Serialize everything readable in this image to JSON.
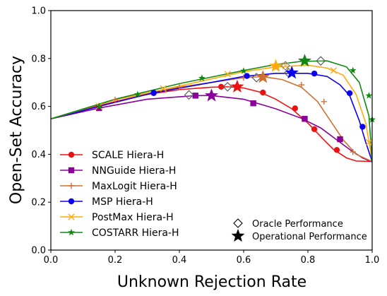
{
  "chart_data": {
    "type": "line",
    "xlabel": "Unknown Rejection Rate",
    "ylabel": "Open-Set Accuracy",
    "xlim": [
      0.0,
      1.0
    ],
    "ylim": [
      0.0,
      1.0
    ],
    "xticks": [
      "0.0",
      "0.2",
      "0.4",
      "0.6",
      "0.8",
      "1.0"
    ],
    "yticks": [
      "0.0",
      "0.2",
      "0.4",
      "0.6",
      "0.8",
      "1.0"
    ],
    "grid": false,
    "legend_placement": "lower-left",
    "series": [
      {
        "name": "SCALE Hiera-H",
        "color": "#ee1111",
        "marker": "circle",
        "points": [
          [
            0,
            0.548
          ],
          [
            0.1,
            0.585
          ],
          [
            0.2,
            0.62
          ],
          [
            0.3,
            0.65
          ],
          [
            0.4,
            0.67
          ],
          [
            0.5,
            0.68
          ],
          [
            0.55,
            0.682
          ],
          [
            0.6,
            0.677
          ],
          [
            0.65,
            0.66
          ],
          [
            0.7,
            0.63
          ],
          [
            0.75,
            0.59
          ],
          [
            0.8,
            0.53
          ],
          [
            0.85,
            0.46
          ],
          [
            0.88,
            0.42
          ],
          [
            0.92,
            0.385
          ],
          [
            0.95,
            0.372
          ],
          [
            1.0,
            0.37
          ]
        ],
        "marker_points": [
          [
            0.32,
            0.655
          ],
          [
            0.53,
            0.682
          ],
          [
            0.66,
            0.658
          ],
          [
            0.76,
            0.592
          ],
          [
            0.82,
            0.505
          ],
          [
            0.89,
            0.418
          ]
        ],
        "oracle": [
          0.55,
          0.682
        ],
        "operational": [
          0.58,
          0.682
        ]
      },
      {
        "name": "NNGuide Hiera-H",
        "color": "#880099",
        "marker": "square",
        "points": [
          [
            0,
            0.548
          ],
          [
            0.15,
            0.593
          ],
          [
            0.3,
            0.63
          ],
          [
            0.45,
            0.645
          ],
          [
            0.5,
            0.645
          ],
          [
            0.6,
            0.63
          ],
          [
            0.7,
            0.59
          ],
          [
            0.78,
            0.55
          ],
          [
            0.84,
            0.51
          ],
          [
            0.88,
            0.47
          ],
          [
            0.93,
            0.42
          ],
          [
            0.97,
            0.385
          ],
          [
            1.0,
            0.368
          ]
        ],
        "marker_points": [
          [
            0.15,
            0.593
          ],
          [
            0.45,
            0.645
          ],
          [
            0.63,
            0.613
          ],
          [
            0.79,
            0.548
          ],
          [
            0.9,
            0.463
          ]
        ],
        "oracle": [
          0.43,
          0.648
        ],
        "operational": [
          0.5,
          0.645
        ]
      },
      {
        "name": "MaxLogit Hiera-H",
        "color": "#d07030",
        "marker": "plus",
        "points": [
          [
            0,
            0.548
          ],
          [
            0.2,
            0.628
          ],
          [
            0.4,
            0.68
          ],
          [
            0.5,
            0.7
          ],
          [
            0.6,
            0.72
          ],
          [
            0.66,
            0.724
          ],
          [
            0.72,
            0.712
          ],
          [
            0.78,
            0.68
          ],
          [
            0.83,
            0.62
          ],
          [
            0.87,
            0.54
          ],
          [
            0.91,
            0.46
          ],
          [
            0.95,
            0.4
          ],
          [
            1.0,
            0.37
          ]
        ],
        "marker_points": [
          [
            0.2,
            0.628
          ],
          [
            0.4,
            0.68
          ],
          [
            0.6,
            0.72
          ],
          [
            0.78,
            0.69
          ],
          [
            0.85,
            0.62
          ],
          [
            0.94,
            0.41
          ]
        ],
        "oracle": [
          0.64,
          0.72
        ],
        "operational": [
          0.66,
          0.722
        ]
      },
      {
        "name": "MSP Hiera-H",
        "color": "#0b00ee",
        "marker": "circle",
        "points": [
          [
            0,
            0.548
          ],
          [
            0.15,
            0.6
          ],
          [
            0.32,
            0.657
          ],
          [
            0.5,
            0.7
          ],
          [
            0.6,
            0.725
          ],
          [
            0.7,
            0.738
          ],
          [
            0.8,
            0.738
          ],
          [
            0.86,
            0.725
          ],
          [
            0.9,
            0.69
          ],
          [
            0.93,
            0.645
          ],
          [
            0.96,
            0.54
          ],
          [
            0.98,
            0.45
          ],
          [
            1.0,
            0.37
          ]
        ],
        "marker_points": [
          [
            0.32,
            0.657
          ],
          [
            0.61,
            0.727
          ],
          [
            0.82,
            0.737
          ],
          [
            0.93,
            0.655
          ],
          [
            0.97,
            0.515
          ]
        ],
        "oracle": [
          0.74,
          0.74
        ],
        "operational": [
          0.75,
          0.74
        ]
      },
      {
        "name": "PostMax Hiera-H",
        "color": "#ffaa11",
        "marker": "x",
        "points": [
          [
            0,
            0.548
          ],
          [
            0.2,
            0.628
          ],
          [
            0.4,
            0.685
          ],
          [
            0.6,
            0.745
          ],
          [
            0.7,
            0.765
          ],
          [
            0.8,
            0.772
          ],
          [
            0.86,
            0.76
          ],
          [
            0.91,
            0.73
          ],
          [
            0.95,
            0.65
          ],
          [
            0.98,
            0.53
          ],
          [
            1.0,
            0.375
          ]
        ],
        "marker_points": [
          [
            0.15,
            0.6
          ],
          [
            0.35,
            0.675
          ],
          [
            0.55,
            0.735
          ],
          [
            0.73,
            0.77
          ],
          [
            0.88,
            0.75
          ],
          [
            0.99,
            0.45
          ]
        ],
        "oracle": [
          0.73,
          0.77
        ],
        "operational": [
          0.7,
          0.768
        ]
      },
      {
        "name": "COSTARR Hiera-H",
        "color": "#118811",
        "marker": "star",
        "points": [
          [
            0,
            0.548
          ],
          [
            0.2,
            0.63
          ],
          [
            0.4,
            0.695
          ],
          [
            0.6,
            0.75
          ],
          [
            0.7,
            0.775
          ],
          [
            0.78,
            0.788
          ],
          [
            0.86,
            0.79
          ],
          [
            0.92,
            0.765
          ],
          [
            0.96,
            0.7
          ],
          [
            0.99,
            0.56
          ],
          [
            1.0,
            0.37
          ]
        ],
        "marker_points": [
          [
            0.15,
            0.6
          ],
          [
            0.27,
            0.65
          ],
          [
            0.47,
            0.718
          ],
          [
            0.6,
            0.748
          ],
          [
            0.94,
            0.75
          ],
          [
            0.99,
            0.645
          ],
          [
            1.0,
            0.545
          ]
        ],
        "oracle": [
          0.84,
          0.79
        ],
        "operational": [
          0.79,
          0.79
        ]
      }
    ],
    "marker_legend": [
      {
        "label": "Oracle Performance",
        "marker": "diamond"
      },
      {
        "label": "Operational Performance",
        "marker": "star"
      }
    ]
  }
}
